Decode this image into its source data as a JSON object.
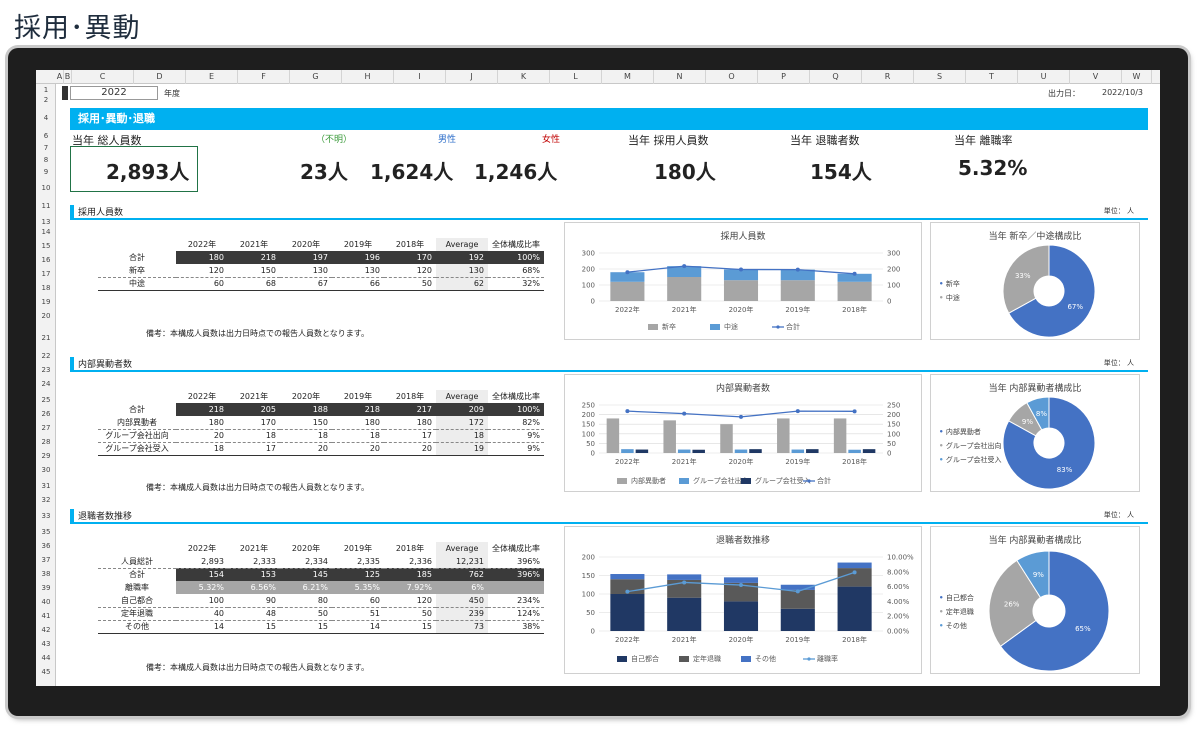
{
  "page_title": "採用･異動",
  "sheet": {
    "columns": [
      "A",
      "B",
      "C",
      "D",
      "E",
      "F",
      "G",
      "H",
      "I",
      "J",
      "K",
      "L",
      "M",
      "N",
      "O",
      "P",
      "Q",
      "R",
      "S",
      "T",
      "U",
      "V",
      "W"
    ],
    "rows": [
      "1",
      "2",
      "4",
      "6",
      "7",
      "8",
      "9",
      "10",
      "11",
      "13",
      "14",
      "15",
      "16",
      "17",
      "18",
      "19",
      "20",
      "21",
      "22",
      "23",
      "24",
      "25",
      "26",
      "27",
      "28",
      "29",
      "30",
      "31",
      "32",
      "33",
      "35",
      "36",
      "37",
      "38",
      "39",
      "40",
      "41",
      "42",
      "43",
      "44",
      "45"
    ],
    "year_value": "2022",
    "year_suffix": "年度",
    "output_date_label": "出力日：",
    "output_date_value": "2022/10/3",
    "banner": "採用･異動･退職"
  },
  "kpis": {
    "total_label": "当年 総人員数",
    "total_value": "2,893人",
    "unknown_label": "（不明）",
    "unknown_value": "23人",
    "male_label": "男性",
    "male_value": "1,624人",
    "female_label": "女性",
    "female_value": "1,246人",
    "hire_label": "当年 採用人員数",
    "hire_value": "180人",
    "leave_label": "当年 退職者数",
    "leave_value": "154人",
    "turnover_label": "当年 離職率",
    "turnover_value": "5.32%",
    "colors": {
      "unknown": "#3a9a3a",
      "male": "#2e6ec9",
      "female": "#c00000"
    }
  },
  "common": {
    "headers": [
      "2022年",
      "2021年",
      "2020年",
      "2019年",
      "2018年",
      "Average",
      "全体構成比率"
    ],
    "unit": "単位： 人",
    "note": "備考：本構成人員数は出力日時点での報告人員数となります。"
  },
  "hiring": {
    "section_label": "採用人員数",
    "rows": [
      {
        "label": "合計",
        "values": [
          "180",
          "218",
          "197",
          "196",
          "170",
          "192",
          "100%"
        ]
      },
      {
        "label": "新卒",
        "values": [
          "120",
          "150",
          "130",
          "130",
          "120",
          "130",
          "68%"
        ]
      },
      {
        "label": "中途",
        "values": [
          "60",
          "68",
          "67",
          "66",
          "50",
          "62",
          "32%"
        ]
      }
    ]
  },
  "transfer": {
    "section_label": "内部異動者数",
    "rows": [
      {
        "label": "合計",
        "values": [
          "218",
          "205",
          "188",
          "218",
          "217",
          "209",
          "100%"
        ]
      },
      {
        "label": "内部異動者",
        "values": [
          "180",
          "170",
          "150",
          "180",
          "180",
          "172",
          "82%"
        ]
      },
      {
        "label": "グループ会社出向",
        "values": [
          "20",
          "18",
          "18",
          "18",
          "17",
          "18",
          "9%"
        ]
      },
      {
        "label": "グループ会社受入",
        "values": [
          "18",
          "17",
          "20",
          "20",
          "20",
          "19",
          "9%"
        ]
      }
    ]
  },
  "leaving": {
    "section_label": "退職者数推移",
    "rows": [
      {
        "label": "人員総計",
        "values": [
          "2,893",
          "2,333",
          "2,334",
          "2,335",
          "2,336",
          "12,231",
          "396%"
        ]
      },
      {
        "label": "合計",
        "values": [
          "154",
          "153",
          "145",
          "125",
          "185",
          "762",
          "396%"
        ]
      },
      {
        "label": "離職率",
        "values": [
          "5.32%",
          "6.56%",
          "6.21%",
          "5.35%",
          "7.92%",
          "6%",
          ""
        ]
      },
      {
        "label": "自己都合",
        "values": [
          "100",
          "90",
          "80",
          "60",
          "120",
          "450",
          "234%"
        ]
      },
      {
        "label": "定年退職",
        "values": [
          "40",
          "48",
          "50",
          "51",
          "50",
          "239",
          "124%"
        ]
      },
      {
        "label": "その他",
        "values": [
          "14",
          "15",
          "15",
          "14",
          "15",
          "73",
          "38%"
        ]
      }
    ]
  },
  "chart_data": [
    {
      "type": "bar",
      "title": "採用人員数",
      "stacked": true,
      "categories": [
        "2022年",
        "2021年",
        "2020年",
        "2019年",
        "2018年"
      ],
      "series": [
        {
          "name": "新卒",
          "values": [
            120,
            150,
            130,
            130,
            120
          ],
          "color": "#a6a6a6"
        },
        {
          "name": "中途",
          "values": [
            60,
            68,
            67,
            66,
            50
          ],
          "color": "#5b9bd5"
        },
        {
          "name": "合計",
          "type": "line",
          "values": [
            180,
            218,
            197,
            196,
            170
          ],
          "color": "#4472c4"
        }
      ],
      "ylim": [
        0,
        300
      ],
      "yticks": [
        "0",
        "100",
        "200",
        "300"
      ],
      "y2ticks": [
        "0",
        "100",
        "200",
        "300"
      ],
      "legend": "bottom"
    },
    {
      "type": "pie",
      "title": "当年 新卒／中途構成比",
      "categories": [
        "新卒",
        "中途"
      ],
      "values": [
        67,
        33
      ],
      "labels": [
        "67%",
        "33%"
      ],
      "colors": [
        "#4472c4",
        "#a6a6a6"
      ],
      "donut": true,
      "legend": "left"
    },
    {
      "type": "bar",
      "title": "内部異動者数",
      "categories": [
        "2022年",
        "2021年",
        "2020年",
        "2019年",
        "2018年"
      ],
      "series": [
        {
          "name": "内部異動者",
          "values": [
            180,
            170,
            150,
            180,
            180
          ],
          "color": "#a6a6a6"
        },
        {
          "name": "グループ会社出向",
          "values": [
            20,
            18,
            18,
            18,
            17
          ],
          "color": "#5b9bd5"
        },
        {
          "name": "グループ会社受入",
          "values": [
            18,
            17,
            20,
            20,
            20
          ],
          "color": "#1f3864"
        },
        {
          "name": "合計",
          "type": "line",
          "values": [
            218,
            205,
            188,
            218,
            217
          ],
          "color": "#4472c4"
        }
      ],
      "ylim": [
        0,
        250
      ],
      "yticks": [
        "0",
        "50",
        "100",
        "150",
        "200",
        "250"
      ],
      "y2ticks": [
        "0",
        "50",
        "100",
        "150",
        "200",
        "250"
      ],
      "legend": "bottom"
    },
    {
      "type": "pie",
      "title": "当年 内部異動者構成比",
      "categories": [
        "内部異動者",
        "グループ会社出向",
        "グループ会社受入"
      ],
      "values": [
        83,
        9,
        8
      ],
      "labels": [
        "83%",
        "9%",
        "8%"
      ],
      "colors": [
        "#4472c4",
        "#a6a6a6",
        "#5b9bd5"
      ],
      "donut": true,
      "legend": "left"
    },
    {
      "type": "bar",
      "title": "退職者数推移",
      "stacked": true,
      "categories": [
        "2022年",
        "2021年",
        "2020年",
        "2019年",
        "2018年"
      ],
      "series": [
        {
          "name": "自己都合",
          "values": [
            100,
            90,
            80,
            60,
            120
          ],
          "color": "#203864"
        },
        {
          "name": "定年退職",
          "values": [
            40,
            48,
            50,
            51,
            50
          ],
          "color": "#595959"
        },
        {
          "name": "その他",
          "values": [
            14,
            15,
            15,
            14,
            15
          ],
          "color": "#4472c4"
        },
        {
          "name": "離職率",
          "type": "line",
          "axis": "right",
          "values": [
            5.32,
            6.56,
            6.21,
            5.35,
            7.92
          ],
          "color": "#5b9bd5"
        }
      ],
      "ylim": [
        0,
        200
      ],
      "y2lim": [
        0,
        10
      ],
      "yticks": [
        "0",
        "50",
        "100",
        "150",
        "200"
      ],
      "y2ticks": [
        "0.00%",
        "2.00%",
        "4.00%",
        "6.00%",
        "8.00%",
        "10.00%"
      ],
      "legend": "bottom"
    },
    {
      "type": "pie",
      "title": "当年 内部異動者構成比",
      "categories": [
        "自己都合",
        "定年退職",
        "その他"
      ],
      "values": [
        65,
        26,
        9
      ],
      "labels": [
        "65%",
        "26%",
        "9%"
      ],
      "colors": [
        "#4472c4",
        "#a6a6a6",
        "#5b9bd5"
      ],
      "donut": true,
      "legend": "left"
    }
  ]
}
